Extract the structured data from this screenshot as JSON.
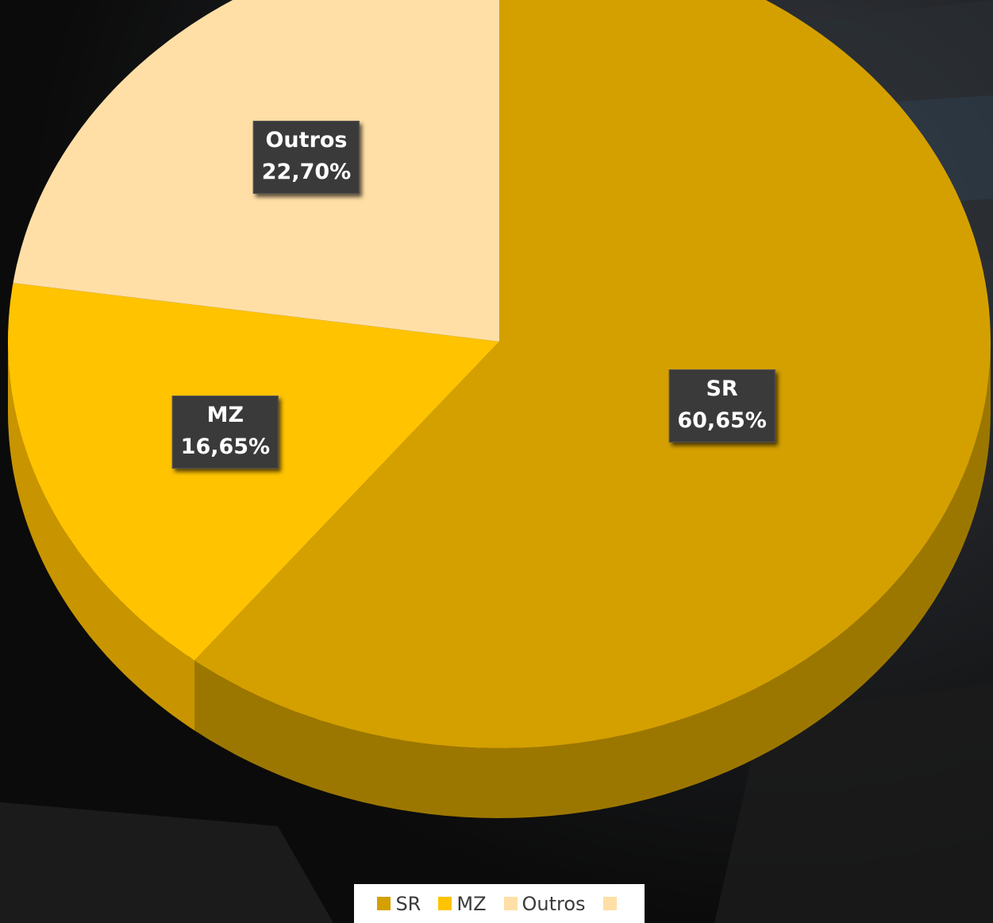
{
  "chart_data": {
    "type": "pie",
    "style": "3d-tilted",
    "slices": [
      {
        "name": "SR",
        "value": 60.65,
        "label": "60,65%",
        "color": "#D4A000",
        "side_color": "#9C7700"
      },
      {
        "name": "MZ",
        "value": 16.65,
        "label": "16,65%",
        "color": "#FFC300",
        "side_color": "#C89500"
      },
      {
        "name": "Outros",
        "value": 22.7,
        "label": "22,70%",
        "color": "#FFDFA6",
        "side_color": "#D8B883"
      }
    ],
    "legend": {
      "placement": "bottom-center",
      "entries": [
        {
          "name": "SR",
          "color": "#D4A000"
        },
        {
          "name": "MZ",
          "color": "#FFC300"
        },
        {
          "name": "Outros",
          "color": "#FFDFA6"
        },
        {
          "name": "",
          "color": "#FFDFA6"
        }
      ]
    }
  },
  "colors": {
    "background": "#141414",
    "label_background": "#3a3a3a",
    "label_text": "#ffffff"
  }
}
